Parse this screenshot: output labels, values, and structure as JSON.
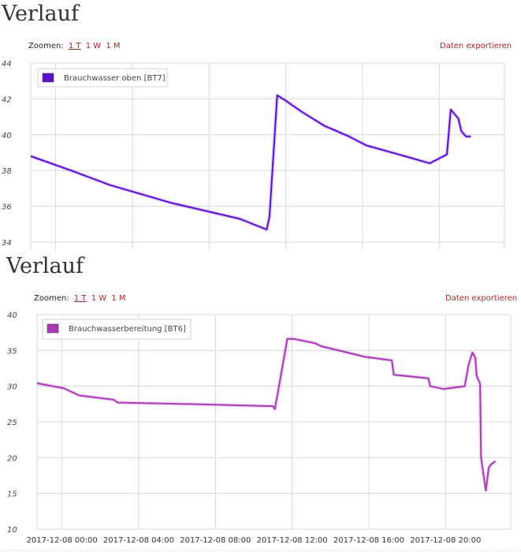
{
  "chart_data": [
    {
      "type": "line",
      "title": "Verlauf",
      "zoom": {
        "label": "Zoomen:",
        "options": [
          "1 T",
          "1 W",
          "1 M"
        ],
        "active": "1 T"
      },
      "export_label": "Daten exportieren",
      "ylim": [
        34,
        44
      ],
      "yticks": [
        "44",
        "42",
        "40",
        "38",
        "36",
        "34"
      ],
      "xlim": [
        -1.3,
        23.4
      ],
      "xgrid": [
        -1.3,
        0.0,
        4.0,
        8.0,
        12.0,
        16.0,
        20.0,
        23.4
      ],
      "legend": {
        "position": "top-left"
      },
      "grid": true,
      "series": [
        {
          "name": "Brauchwasser oben [BT7]",
          "color": "#5a0fd1",
          "points": [
            [
              -1.3,
              38.8
            ],
            [
              0.8,
              38.0
            ],
            [
              2.8,
              37.2
            ],
            [
              6.0,
              36.2
            ],
            [
              9.6,
              35.3
            ],
            [
              11.0,
              34.7
            ],
            [
              11.15,
              35.4
            ],
            [
              11.35,
              38.8
            ],
            [
              11.55,
              42.2
            ],
            [
              12.0,
              41.9
            ],
            [
              12.8,
              41.3
            ],
            [
              14.0,
              40.5
            ],
            [
              15.3,
              39.9
            ],
            [
              16.2,
              39.4
            ],
            [
              18.2,
              38.8
            ],
            [
              19.5,
              38.4
            ],
            [
              20.4,
              38.9
            ],
            [
              20.6,
              41.4
            ],
            [
              21.0,
              40.9
            ],
            [
              21.15,
              40.2
            ],
            [
              21.4,
              39.9
            ],
            [
              21.65,
              39.9
            ]
          ]
        }
      ]
    },
    {
      "type": "line",
      "title": "Verlauf",
      "zoom": {
        "label": "Zoomen:",
        "options": [
          "1 T",
          "1 W",
          "1 M"
        ],
        "active": "1 T"
      },
      "export_label": "Daten exportieren",
      "ylim": [
        10,
        40
      ],
      "yticks": [
        "40",
        "35",
        "30",
        "25",
        "20",
        "15",
        "10"
      ],
      "xlim": [
        -1.3,
        23.4
      ],
      "xgrid": [
        -1.3,
        0.0,
        4.0,
        8.0,
        12.0,
        16.0,
        20.0,
        23.4
      ],
      "xticks": [
        {
          "x": 0.0,
          "label": "2017-12-08 00:00"
        },
        {
          "x": 4.0,
          "label": "2017-12-08 04:00"
        },
        {
          "x": 8.0,
          "label": "2017-12-08 08:00"
        },
        {
          "x": 12.0,
          "label": "2017-12-08 12:00"
        },
        {
          "x": 16.0,
          "label": "2017-12-08 16:00"
        },
        {
          "x": 20.0,
          "label": "2017-12-08 20:00"
        }
      ],
      "legend": {
        "position": "top-left"
      },
      "grid": true,
      "series": [
        {
          "name": "Brauchwasserbereitung [BT6]",
          "color": "#a83ab4",
          "points": [
            [
              -1.3,
              30.4
            ],
            [
              0.1,
              29.7
            ],
            [
              0.9,
              28.7
            ],
            [
              2.7,
              28.1
            ],
            [
              2.9,
              27.7
            ],
            [
              8.0,
              27.4
            ],
            [
              11.0,
              27.2
            ],
            [
              11.1,
              26.8
            ],
            [
              11.25,
              29.0
            ],
            [
              11.75,
              36.6
            ],
            [
              12.1,
              36.6
            ],
            [
              13.2,
              36.0
            ],
            [
              13.5,
              35.6
            ],
            [
              15.8,
              34.1
            ],
            [
              17.2,
              33.6
            ],
            [
              17.3,
              31.6
            ],
            [
              19.1,
              31.1
            ],
            [
              19.2,
              30.0
            ],
            [
              19.9,
              29.6
            ],
            [
              21.0,
              30.0
            ],
            [
              21.2,
              33.0
            ],
            [
              21.4,
              34.7
            ],
            [
              21.55,
              34.0
            ],
            [
              21.62,
              31.5
            ],
            [
              21.8,
              30.3
            ],
            [
              21.85,
              20.0
            ],
            [
              22.1,
              15.4
            ],
            [
              22.25,
              18.5
            ],
            [
              22.35,
              19.0
            ],
            [
              22.6,
              19.5
            ]
          ]
        }
      ]
    }
  ]
}
